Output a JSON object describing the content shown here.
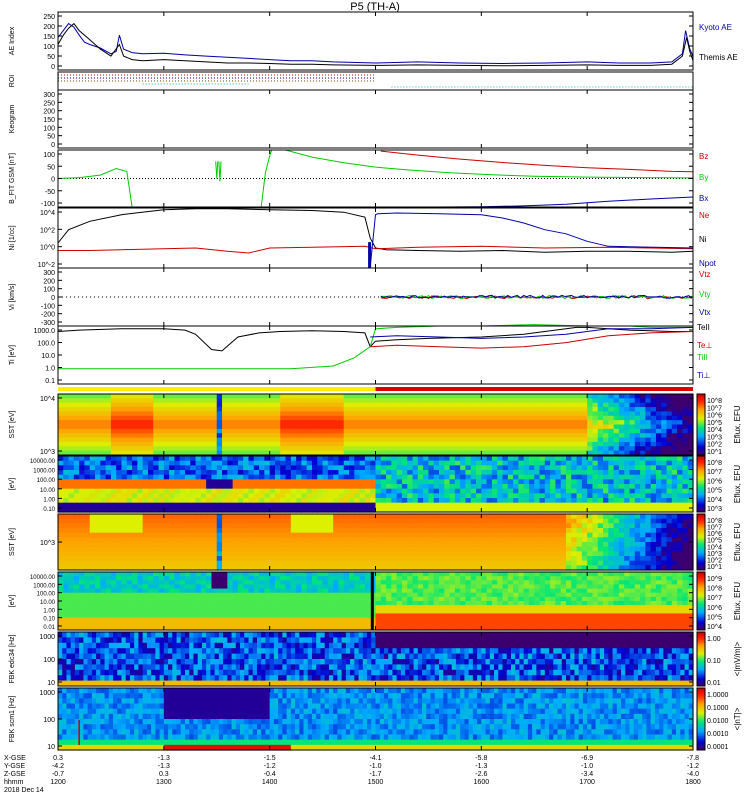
{
  "title": "P5 (TH-A)",
  "colors": {
    "kyoto_ae": "#0000aa",
    "themis_ae": "#000000",
    "bz": "#cc0000",
    "by": "#00cc00",
    "bx": "#0000aa",
    "ne": "#cc0000",
    "ni": "#000000",
    "npot": "#0000aa",
    "fast_bar": "#dd0000",
    "slow_bar": "#ffee00"
  },
  "chart_data": [
    {
      "id": "ae",
      "type": "line",
      "ylabel": "AE Index",
      "yticks": [
        "250",
        "200",
        "150",
        "100",
        "50",
        "0"
      ],
      "ylim": [
        0,
        250
      ],
      "series": [
        {
          "name": "Kyoto AE",
          "x": [
            1200,
            1205,
            1210,
            1215,
            1220,
            1225,
            1230,
            1240,
            1250,
            1255,
            1258,
            1262,
            1270,
            1280,
            1300,
            1320,
            1340,
            1360,
            1380,
            1400,
            1420,
            1440,
            1460,
            1500,
            1540,
            1580,
            1620,
            1660,
            1700,
            1730,
            1760,
            1780,
            1790,
            1793,
            1797,
            1800
          ],
          "y": [
            140,
            170,
            200,
            185,
            150,
            120,
            110,
            95,
            70,
            80,
            150,
            90,
            75,
            70,
            72,
            65,
            60,
            55,
            50,
            45,
            40,
            40,
            35,
            30,
            35,
            30,
            28,
            30,
            35,
            30,
            30,
            35,
            70,
            170,
            90,
            60
          ]
        },
        {
          "name": "Themis AE",
          "x": [
            1200,
            1205,
            1210,
            1215,
            1220,
            1230,
            1240,
            1250,
            1258,
            1262,
            1270,
            1280,
            1300,
            1320,
            1340,
            1360,
            1380,
            1400,
            1420,
            1440,
            1460,
            1500,
            1540,
            1580,
            1620,
            1660,
            1700,
            1730,
            1760,
            1780,
            1790,
            1794,
            1797,
            1800
          ],
          "y": [
            110,
            150,
            180,
            200,
            170,
            130,
            90,
            60,
            110,
            60,
            45,
            40,
            45,
            40,
            35,
            30,
            30,
            28,
            25,
            25,
            22,
            20,
            22,
            20,
            18,
            20,
            22,
            20,
            20,
            25,
            60,
            140,
            80,
            40
          ]
        }
      ]
    },
    {
      "id": "roi",
      "ylabel": "ROI",
      "type": "table"
    },
    {
      "id": "keogram",
      "ylabel": "Keogram",
      "type": "heatmap",
      "yticks": [
        "300",
        "250",
        "200",
        "150",
        "100",
        "50",
        "0"
      ],
      "ylim": [
        0,
        300
      ]
    },
    {
      "id": "bfield",
      "type": "line",
      "ylabel": "B_FIT GSM [nT]",
      "yticks": [
        "100",
        "50",
        "0",
        "-50",
        "-100"
      ],
      "ylim": [
        -100,
        100
      ],
      "series": [
        {
          "name": "Bz",
          "x": [
            1505,
            1540,
            1580,
            1620,
            1660,
            1700,
            1740,
            1780,
            1800
          ],
          "y": [
            96,
            82,
            68,
            56,
            46,
            38,
            32,
            25,
            24
          ]
        },
        {
          "name": "By",
          "x": [
            1200,
            1220,
            1240,
            1255,
            1265,
            1272
          ],
          "y": [
            0,
            5,
            15,
            35,
            20,
            -100
          ]
        },
        {
          "name": "Bx",
          "x": [
            1500,
            1560,
            1600,
            1640,
            1680,
            1720,
            1760,
            1800
          ],
          "y": [
            -100,
            -100,
            -99,
            -96,
            -90,
            -80,
            -72,
            -65
          ]
        }
      ]
    },
    {
      "id": "density",
      "type": "line",
      "ylabel": "Ni [1/cc]",
      "yticks": [
        "10^4",
        "10^2",
        "10^0",
        "10^-2"
      ],
      "ylim": [
        -2,
        4
      ]
    },
    {
      "id": "velocity",
      "type": "scatter",
      "ylabel": "Vi [km/s]",
      "yticks": [
        "300",
        "200",
        "100",
        "0",
        "-100",
        "-200",
        "-300"
      ],
      "ylim": [
        -300,
        300
      ]
    },
    {
      "id": "temperature",
      "type": "line",
      "ylabel": "Ti [eV]",
      "yticks": [
        "1000.0",
        "100.0",
        "10.0",
        "1.0",
        "0.1"
      ],
      "ylim": [
        0.1,
        1000
      ]
    },
    {
      "id": "sst_ion",
      "type": "heatmap",
      "ylabel": "SST [eV]",
      "yticks": [
        "10^4",
        "10^3"
      ],
      "cbar_ticks": [
        "10^8",
        "10^7",
        "10^6",
        "10^5",
        "10^4",
        "10^3",
        "10^2",
        "10^1"
      ],
      "cbar_label": "Eflux, EFU"
    },
    {
      "id": "esa_ion",
      "type": "heatmap",
      "ylabel": "[eV]",
      "yticks": [
        "10000.00",
        "1000.00",
        "100.00",
        "10.00",
        "1.00",
        "0.10"
      ],
      "cbar_ticks": [
        "10^8",
        "10^7",
        "10^6",
        "10^5",
        "10^4",
        "10^3"
      ],
      "cbar_label": "Eflux, EFU"
    },
    {
      "id": "sst_elec",
      "type": "heatmap",
      "ylabel": "SST [eV]",
      "yticks": [
        "10^3"
      ],
      "cbar_ticks": [
        "10^8",
        "10^7",
        "10^6",
        "10^5",
        "10^4",
        "10^3",
        "10^2",
        "10^1"
      ],
      "cbar_label": "Eflux, EFU"
    },
    {
      "id": "esa_elec",
      "type": "heatmap",
      "ylabel": "[eV]",
      "yticks": [
        "10000.00",
        "1000.00",
        "100.00",
        "10.00",
        "1.00",
        "0.10",
        "0.01"
      ],
      "cbar_ticks": [
        "10^9",
        "10^8",
        "10^7",
        "10^6",
        "10^5",
        "10^4"
      ],
      "cbar_label": "Eflux, EFU"
    },
    {
      "id": "fbk_edc",
      "type": "heatmap",
      "ylabel": "FBK edc34 [Hz]",
      "yticks": [
        "1000",
        "100",
        "10"
      ],
      "cbar_ticks": [
        "1.00",
        "0.10",
        "0.01"
      ],
      "cbar_label": "<|mV/m|>"
    },
    {
      "id": "fbk_scm",
      "type": "heatmap",
      "ylabel": "FBK scm1 [Hz]",
      "yticks": [
        "1000",
        "100",
        "10"
      ],
      "cbar_ticks": [
        "1.0000",
        "0.1000",
        "0.0100",
        "0.0010",
        "0.0001"
      ],
      "cbar_label": "<|nT|>"
    }
  ],
  "legends": {
    "ae": [
      "Kyoto AE",
      "Themis AE"
    ],
    "bfield": [
      "Bz",
      "By",
      "Bx"
    ],
    "density": [
      "Ne",
      "Ni",
      "Npot"
    ],
    "velocity": [
      "Vtz",
      "Vty",
      "Vtx"
    ],
    "temperature": [
      "TeII",
      "Te⊥",
      "TiII",
      "Ti⊥"
    ]
  },
  "panel_labels": {
    "ae": "AE Index",
    "roi": "ROI",
    "keogram": "Keogram",
    "bfield": "B_FIT GSM [nT]",
    "density": "Ni [1/cc]",
    "velocity": "Vi [km/s]",
    "temperature": "Ti [eV]",
    "sst_ion": "SST [eV]",
    "esa_ion": "[eV]",
    "sst_elec": "SST [eV]",
    "esa_elec": "[eV]",
    "fbk_edc": "FBK edc34 [Hz]",
    "fbk_scm": "FBK scm1 [Hz]"
  },
  "x_axis": {
    "row_labels": [
      "X-GSE",
      "Y-GSE",
      "Z-GSE",
      "hhmm",
      "2018 Dec 14"
    ],
    "positions": [
      1200,
      1300,
      1400,
      1500,
      1600,
      1700,
      1800
    ],
    "x": [
      "0.3",
      "-1.3",
      "-1.5",
      "-4.1",
      "-5.8",
      "-6.9",
      "-7.8"
    ],
    "y": [
      "-4.2",
      "-1.3",
      "-1.2",
      "-1.0",
      "-1.3",
      "-1.0",
      "-1.2"
    ],
    "z": [
      "-0.7",
      "0.3",
      "-0.4",
      "-1.7",
      "-2.6",
      "-3.4",
      "-4.0"
    ],
    "hhmm": [
      "1200",
      "1300",
      "1400",
      "1500",
      "1600",
      "1700",
      "1800"
    ]
  }
}
